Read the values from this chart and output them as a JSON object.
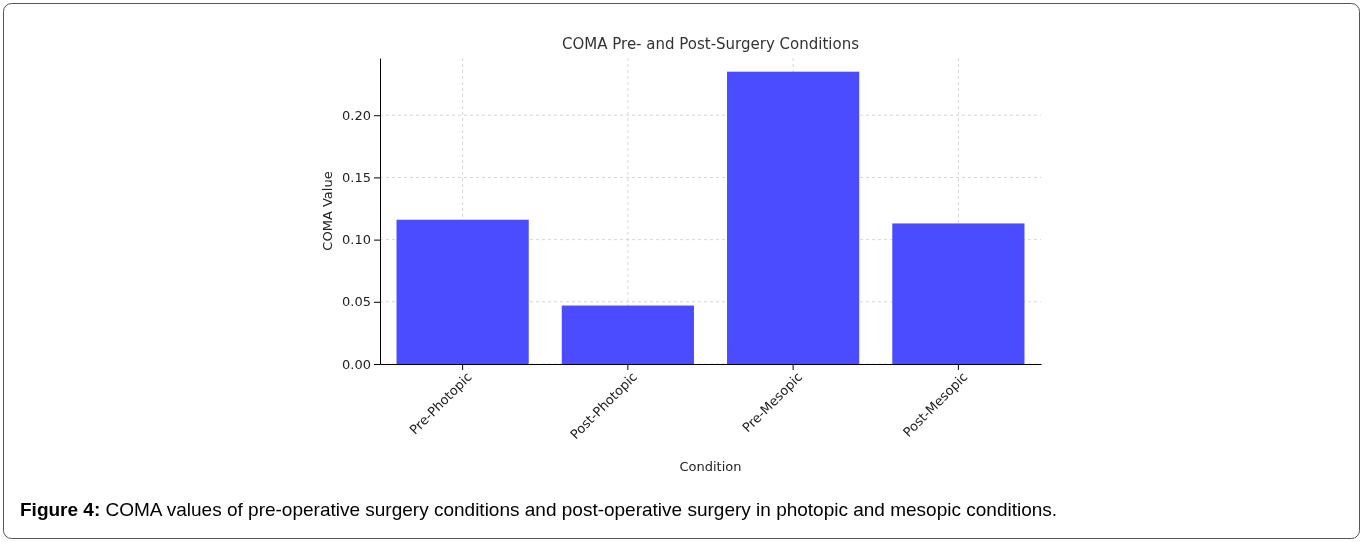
{
  "chart_data": {
    "type": "bar",
    "title": "COMA Pre- and Post-Surgery Conditions",
    "xlabel": "Condition",
    "ylabel": "COMA Value",
    "categories": [
      "Pre-Photopic",
      "Post-Photopic",
      "Pre-Mesopic",
      "Post-Mesopic"
    ],
    "values": [
      0.116,
      0.047,
      0.235,
      0.113
    ],
    "color": "#4b4bff",
    "ylim": [
      0,
      0.246
    ],
    "yticks": [
      {
        "value": 0,
        "label": "0.00"
      },
      {
        "value": 0.05,
        "label": "0.05"
      },
      {
        "value": 0.1,
        "label": "0.10"
      },
      {
        "value": 0.15,
        "label": "0.15"
      },
      {
        "value": 0.2,
        "label": "0.20"
      }
    ],
    "grid": true,
    "annotations": [
      "Figure 4: COMA values of pre-operative surgery conditions and post-operative surgery in photopic and mesopic conditions."
    ]
  }
}
